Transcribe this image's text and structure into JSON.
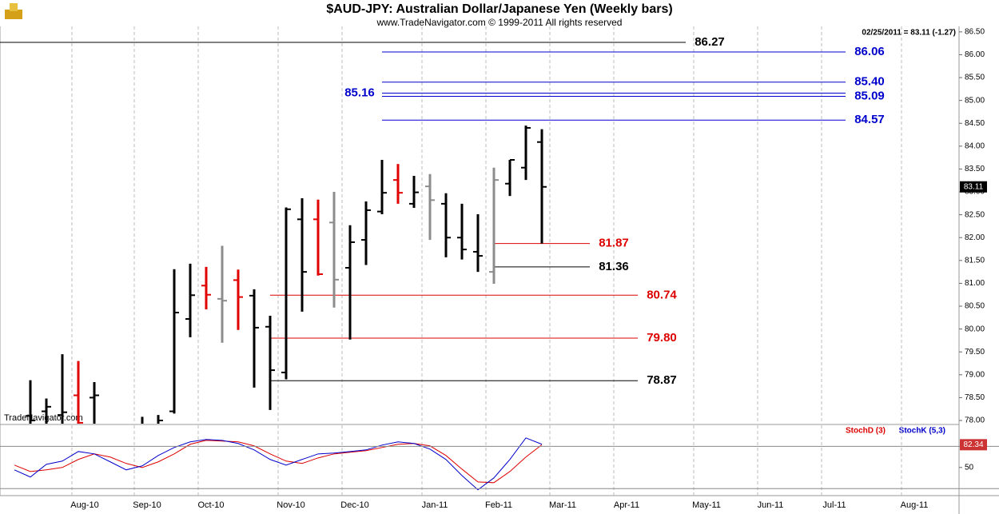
{
  "chart_data": [
    {
      "type": "ohlc",
      "title": "$AUD-JPY:  Australian Dollar/Japanese Yen  (Weekly bars)",
      "subtitle": "www.TradeNavigator.com © 1999-2011 All rights reserved",
      "info": "02/25/2011 = 83.11 (-1.27)",
      "watermark": "TradeNavigator.com",
      "x": [
        2,
        3,
        4,
        5,
        6,
        9,
        10,
        11,
        12,
        13,
        14,
        15,
        16,
        17,
        18,
        19,
        20,
        21,
        22,
        23,
        24,
        25,
        26,
        27,
        28,
        29,
        30,
        31,
        32,
        33,
        34
      ],
      "open": [
        78.1,
        78.2,
        78.12,
        78.55,
        78.5,
        77.7,
        77.9,
        78.2,
        80.22,
        80.95,
        80.66,
        81.07,
        80.73,
        80.05,
        79.05,
        82.4,
        82.4,
        82.33,
        81.34,
        81.95,
        82.57,
        83.26,
        82.74,
        83.12,
        82.74,
        82.0,
        81.69,
        81.25,
        83.18,
        83.53,
        84.09
      ],
      "high": [
        78.88,
        78.48,
        79.45,
        79.3,
        78.84,
        78.08,
        78.12,
        81.31,
        81.43,
        81.36,
        81.82,
        81.3,
        80.87,
        80.29,
        82.66,
        82.86,
        82.83,
        83.0,
        82.27,
        82.79,
        83.7,
        83.61,
        83.35,
        83.39,
        82.97,
        82.74,
        82.51,
        83.53,
        83.7,
        84.45,
        84.37
      ],
      "low": [
        77.6,
        77.5,
        77.7,
        77.6,
        77.7,
        77.5,
        77.6,
        78.15,
        79.82,
        80.43,
        79.7,
        79.98,
        78.72,
        78.23,
        78.9,
        80.38,
        81.17,
        80.47,
        79.77,
        81.4,
        82.51,
        82.74,
        82.65,
        81.95,
        81.57,
        81.52,
        81.25,
        80.99,
        82.91,
        83.26,
        81.87
      ],
      "close": [
        78.0,
        78.3,
        78.18,
        77.95,
        78.55,
        77.9,
        78.0,
        80.36,
        80.74,
        80.75,
        80.62,
        80.7,
        80.03,
        79.1,
        82.62,
        81.25,
        81.2,
        81.08,
        81.9,
        82.6,
        82.98,
        82.98,
        82.99,
        82.82,
        82.0,
        81.74,
        81.6,
        83.26,
        83.7,
        84.4,
        83.11
      ],
      "colors": [
        "#000000",
        "#000000",
        "#000000",
        "#e00000",
        "#000000",
        "#000000",
        "#000000",
        "#000000",
        "#000000",
        "#e00000",
        "#8c8c8c",
        "#e00000",
        "#000000",
        "#000000",
        "#000000",
        "#000000",
        "#e00000",
        "#8c8c8c",
        "#000000",
        "#000000",
        "#000000",
        "#e00000",
        "#000000",
        "#8c8c8c",
        "#000000",
        "#000000",
        "#000000",
        "#8c8c8c",
        "#000000",
        "#000000",
        "#000000"
      ],
      "levels": {
        "values": [
          86.27,
          86.06,
          85.4,
          85.16,
          85.09,
          84.57,
          81.87,
          81.36,
          80.74,
          79.8,
          78.87
        ],
        "value_labels": [
          "86.27",
          "86.06",
          "85.40",
          "85.16",
          "85.09",
          "84.57",
          "81.87",
          "81.36",
          "80.74",
          "79.80",
          "78.87"
        ],
        "colors": [
          "#000000",
          "#0000cc",
          "#0000cc",
          "#0000cc",
          "#0000cc",
          "#0000cc",
          "#dd0000",
          "#000000",
          "#dd0000",
          "#dd0000",
          "#000000"
        ]
      },
      "ylim": [
        77.93,
        86.62
      ],
      "yticks": [
        {
          "value": 78,
          "label": "78.00"
        },
        {
          "value": 78.5,
          "label": "78.50"
        },
        {
          "value": 79,
          "label": "79.00"
        },
        {
          "value": 79.5,
          "label": "79.50"
        },
        {
          "value": 80,
          "label": "80.00"
        },
        {
          "value": 80.5,
          "label": "80.50"
        },
        {
          "value": 81,
          "label": "81.00"
        },
        {
          "value": 81.5,
          "label": "81.50"
        },
        {
          "value": 82,
          "label": "82.00"
        },
        {
          "value": 82.5,
          "label": "82.50"
        },
        {
          "value": 83,
          "label": "83.00"
        },
        {
          "value": 83.5,
          "label": "83.50"
        },
        {
          "value": 84,
          "label": "84.00"
        },
        {
          "value": 84.5,
          "label": "84.50"
        },
        {
          "value": 85,
          "label": "85.00"
        },
        {
          "value": 85.5,
          "label": "85.50"
        },
        {
          "value": 86,
          "label": "86.00"
        },
        {
          "value": 86.5,
          "label": "86.50"
        }
      ]
    },
    {
      "type": "line",
      "x": [
        1,
        2,
        3,
        4,
        5,
        6,
        7,
        8,
        9,
        10,
        11,
        12,
        13,
        14,
        15,
        16,
        17,
        18,
        19,
        20,
        21,
        22,
        23,
        24,
        25,
        26,
        27,
        28,
        29,
        30,
        31,
        32,
        33,
        34
      ],
      "series": [
        {
          "name": "StochD (3)",
          "color": "#dd0000",
          "values": [
            53.4,
            44.3,
            46.6,
            50.0,
            61.4,
            69.3,
            64.8,
            55.7,
            50.0,
            58.0,
            69.3,
            83.0,
            88.6,
            87.5,
            86.4,
            80.7,
            69.3,
            59.1,
            55.7,
            63.6,
            69.3,
            71.6,
            73.9,
            78.4,
            83.0,
            84.1,
            80.7,
            67.0,
            47.7,
            29.5,
            28.4,
            44.3,
            64.8,
            82.34
          ]
        },
        {
          "name": "StochK (5,3)",
          "color": "#0000cc",
          "values": [
            46.6,
            36.4,
            54.5,
            59.1,
            72.7,
            69.3,
            58.0,
            46.6,
            52.3,
            67.0,
            78.4,
            86.4,
            89.8,
            88.6,
            84.1,
            75.0,
            61.4,
            53.4,
            61.4,
            69.3,
            70.5,
            72.7,
            75.0,
            81.8,
            86.4,
            84.1,
            76.1,
            61.4,
            38.6,
            18.2,
            35.2,
            61.4,
            92.0,
            83.0
          ]
        }
      ],
      "ylim": [
        10,
        110
      ],
      "yticks": [
        50
      ],
      "hlines": [
        80,
        20
      ],
      "xlim": [
        0.1,
        60.1
      ],
      "xticks": [
        {
          "value": 4.6,
          "label": "Aug-10"
        },
        {
          "value": 8.5,
          "label": "Sep-10"
        },
        {
          "value": 12.5,
          "label": "Oct-10"
        },
        {
          "value": 17.5,
          "label": "Nov-10"
        },
        {
          "value": 21.5,
          "label": "Dec-10"
        },
        {
          "value": 26.5,
          "label": "Jan-11"
        },
        {
          "value": 30.5,
          "label": "Feb-11"
        },
        {
          "value": 34.5,
          "label": "Mar-11"
        },
        {
          "value": 38.5,
          "label": "Apr-11"
        },
        {
          "value": 43.5,
          "label": "May-11"
        },
        {
          "value": 47.5,
          "label": "Jun-11"
        },
        {
          "value": 51.5,
          "label": "Jul-11"
        },
        {
          "value": 56.5,
          "label": "Aug-11"
        }
      ]
    }
  ]
}
